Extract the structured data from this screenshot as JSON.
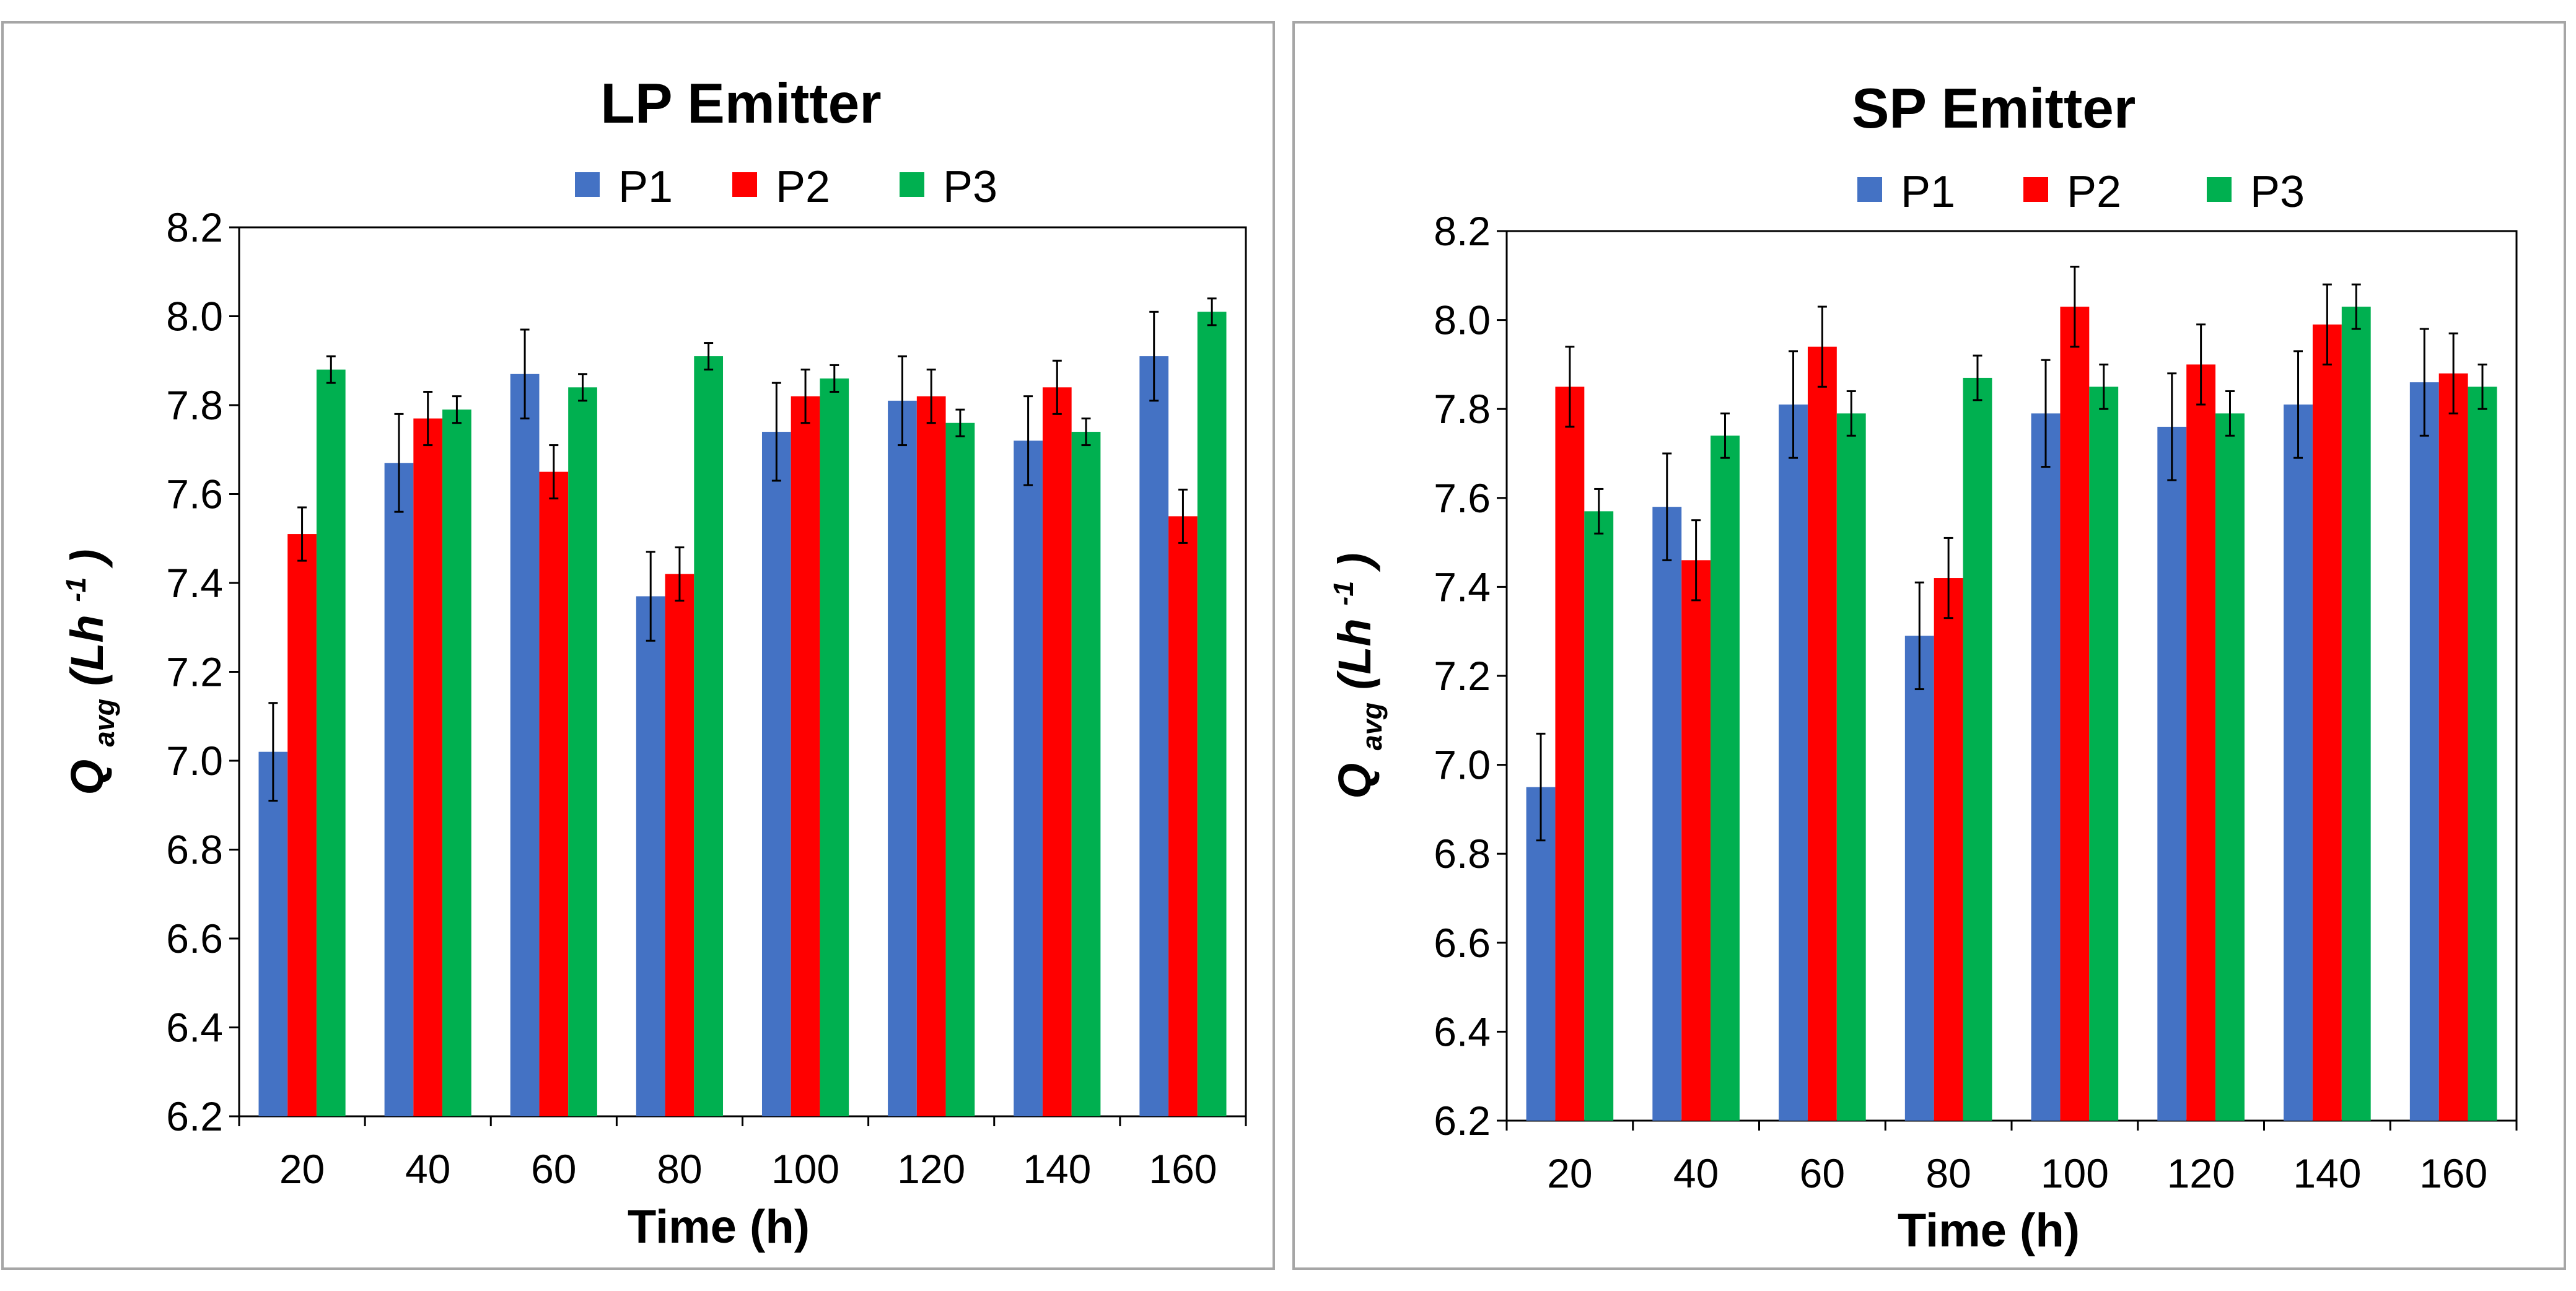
{
  "chart_data": [
    {
      "id": "lp",
      "type": "bar",
      "title": "LP Emitter",
      "xlabel": "Time (h)",
      "ylabel": {
        "main": "Q",
        "subscript": "avg",
        "unit_open": "(Lh",
        "unit_superscript": "-1",
        "unit_close": ")"
      },
      "categories": [
        "20",
        "40",
        "60",
        "80",
        "100",
        "120",
        "140",
        "160"
      ],
      "ylim": [
        6.2,
        8.2
      ],
      "yticks": [
        "6.2",
        "6.4",
        "6.6",
        "6.8",
        "7.0",
        "7.2",
        "7.4",
        "7.6",
        "7.8",
        "8.0",
        "8.2"
      ],
      "legend_position": "top",
      "grid": false,
      "series": [
        {
          "name": "P1",
          "color": "#4472C4",
          "values": [
            7.02,
            7.67,
            7.87,
            7.37,
            7.74,
            7.81,
            7.72,
            7.91
          ],
          "errors": [
            0.11,
            0.11,
            0.1,
            0.1,
            0.11,
            0.1,
            0.1,
            0.1
          ]
        },
        {
          "name": "P2",
          "color": "#FF0000",
          "values": [
            7.51,
            7.77,
            7.65,
            7.42,
            7.82,
            7.82,
            7.84,
            7.55
          ],
          "errors": [
            0.06,
            0.06,
            0.06,
            0.06,
            0.06,
            0.06,
            0.06,
            0.06
          ]
        },
        {
          "name": "P3",
          "color": "#00B050",
          "values": [
            7.88,
            7.79,
            7.84,
            7.91,
            7.86,
            7.76,
            7.74,
            8.01
          ],
          "errors": [
            0.03,
            0.03,
            0.03,
            0.03,
            0.03,
            0.03,
            0.03,
            0.03
          ]
        }
      ]
    },
    {
      "id": "sp",
      "type": "bar",
      "title": "SP Emitter",
      "xlabel": "Time (h)",
      "ylabel": {
        "main": "Q",
        "subscript": "avg",
        "unit_open": "(Lh",
        "unit_superscript": "-1",
        "unit_close": ")"
      },
      "categories": [
        "20",
        "40",
        "60",
        "80",
        "100",
        "120",
        "140",
        "160"
      ],
      "ylim": [
        6.2,
        8.2
      ],
      "yticks": [
        "6.2",
        "6.4",
        "6.6",
        "6.8",
        "7.0",
        "7.2",
        "7.4",
        "7.6",
        "7.8",
        "8.0",
        "8.2"
      ],
      "legend_position": "top",
      "grid": false,
      "series": [
        {
          "name": "P1",
          "color": "#4472C4",
          "values": [
            6.95,
            7.58,
            7.81,
            7.29,
            7.79,
            7.76,
            7.81,
            7.86
          ],
          "errors": [
            0.12,
            0.12,
            0.12,
            0.12,
            0.12,
            0.12,
            0.12,
            0.12
          ]
        },
        {
          "name": "P2",
          "color": "#FF0000",
          "values": [
            7.85,
            7.46,
            7.94,
            7.42,
            8.03,
            7.9,
            7.99,
            7.88
          ],
          "errors": [
            0.09,
            0.09,
            0.09,
            0.09,
            0.09,
            0.09,
            0.09,
            0.09
          ]
        },
        {
          "name": "P3",
          "color": "#00B050",
          "values": [
            7.57,
            7.74,
            7.79,
            7.87,
            7.85,
            7.79,
            8.03,
            7.85
          ],
          "errors": [
            0.05,
            0.05,
            0.05,
            0.05,
            0.05,
            0.05,
            0.05,
            0.05
          ]
        }
      ]
    }
  ]
}
